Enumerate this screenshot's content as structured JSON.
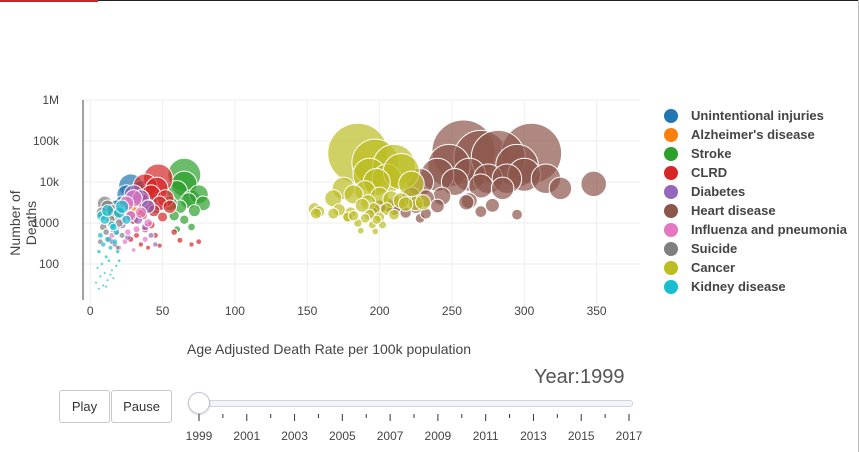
{
  "chart_data": {
    "type": "scatter",
    "title": "",
    "xlabel": "Age Adjusted Death Rate per 100k population",
    "ylabel": "Number of Deaths",
    "xlim": [
      -5,
      380
    ],
    "ylim_log10": [
      1,
      6
    ],
    "y_scale": "log",
    "x_ticks": [
      "0",
      "50",
      "100",
      "150",
      "200",
      "250",
      "300",
      "350"
    ],
    "x_tick_values": [
      0,
      50,
      100,
      150,
      200,
      250,
      300,
      350
    ],
    "y_ticks": [
      "100",
      "1000",
      "10k",
      "100k",
      "1M"
    ],
    "y_tick_values": [
      100,
      1000,
      10000,
      100000,
      1000000
    ],
    "grid": true,
    "legend_placement": "right",
    "series": [
      {
        "name": "Unintentional injuries",
        "color": "#1f77b4",
        "points": [
          [
            28,
            8000
          ],
          [
            25,
            5000
          ],
          [
            22,
            3000
          ],
          [
            35,
            6000
          ],
          [
            18,
            2500
          ],
          [
            30,
            4000
          ],
          [
            40,
            3500
          ],
          [
            15,
            1800
          ],
          [
            45,
            2500
          ]
        ]
      },
      {
        "name": "Alzheimer's disease",
        "color": "#ff7f0e",
        "points": [
          [
            20,
            2000
          ],
          [
            25,
            3000
          ],
          [
            30,
            1500
          ],
          [
            35,
            2500
          ],
          [
            15,
            900
          ],
          [
            28,
            2200
          ]
        ]
      },
      {
        "name": "Stroke",
        "color": "#2ca02c",
        "points": [
          [
            65,
            15000
          ],
          [
            65,
            9000
          ],
          [
            60,
            6000
          ],
          [
            70,
            4000
          ],
          [
            75,
            5000
          ],
          [
            68,
            3500
          ],
          [
            62,
            2500
          ],
          [
            78,
            3000
          ],
          [
            55,
            3000
          ],
          [
            72,
            2000
          ],
          [
            58,
            1500
          ],
          [
            65,
            1200
          ],
          [
            70,
            800
          ],
          [
            60,
            700
          ]
        ]
      },
      {
        "name": "CLRD",
        "color": "#d62728",
        "points": [
          [
            47,
            12000
          ],
          [
            38,
            8000
          ],
          [
            46,
            7000
          ],
          [
            42,
            5000
          ],
          [
            52,
            4000
          ],
          [
            35,
            3500
          ],
          [
            48,
            3000
          ],
          [
            40,
            2600
          ],
          [
            55,
            2500
          ],
          [
            44,
            2000
          ],
          [
            36,
            1600
          ],
          [
            50,
            1400
          ],
          [
            30,
            1200
          ],
          [
            42,
            900
          ],
          [
            38,
            700
          ],
          [
            58,
            600
          ],
          [
            45,
            500
          ],
          [
            32,
            500
          ],
          [
            28,
            400
          ],
          [
            35,
            300
          ],
          [
            40,
            250
          ],
          [
            48,
            280
          ],
          [
            62,
            380
          ],
          [
            70,
            300
          ],
          [
            75,
            350
          ]
        ]
      },
      {
        "name": "Diabetes",
        "color": "#9467bd",
        "points": [
          [
            30,
            5000
          ],
          [
            35,
            4000
          ],
          [
            25,
            3000
          ],
          [
            40,
            2500
          ],
          [
            20,
            2000
          ],
          [
            28,
            1500
          ],
          [
            33,
            1200
          ],
          [
            22,
            900
          ],
          [
            38,
            800
          ],
          [
            18,
            600
          ],
          [
            42,
            500
          ],
          [
            26,
            450
          ],
          [
            15,
            350
          ],
          [
            45,
            300
          ]
        ]
      },
      {
        "name": "Heart disease",
        "color": "#8c564b",
        "points": [
          [
            258,
            55000
          ],
          [
            270,
            40000
          ],
          [
            305,
            50000
          ],
          [
            282,
            40000
          ],
          [
            295,
            25000
          ],
          [
            248,
            25000
          ],
          [
            262,
            15000
          ],
          [
            275,
            12000
          ],
          [
            240,
            15000
          ],
          [
            300,
            15000
          ],
          [
            288,
            12000
          ],
          [
            315,
            12000
          ],
          [
            325,
            7000
          ],
          [
            348,
            9000
          ],
          [
            228,
            10000
          ],
          [
            252,
            10000
          ],
          [
            270,
            8000
          ],
          [
            285,
            7000
          ],
          [
            243,
            4500
          ],
          [
            262,
            3500
          ],
          [
            232,
            4000
          ],
          [
            222,
            4500
          ],
          [
            278,
            2700
          ],
          [
            260,
            3200
          ],
          [
            213,
            3000
          ],
          [
            240,
            2600
          ],
          [
            295,
            1600
          ],
          [
            270,
            1900
          ],
          [
            225,
            2500
          ],
          [
            210,
            2200
          ],
          [
            205,
            2800
          ],
          [
            218,
            1800
          ],
          [
            228,
            1300
          ],
          [
            200,
            2500
          ],
          [
            232,
            1700
          ],
          [
            195,
            1800
          ]
        ]
      },
      {
        "name": "Influenza and pneumonia",
        "color": "#e377c2",
        "points": [
          [
            30,
            4000
          ],
          [
            25,
            3000
          ],
          [
            20,
            2000
          ],
          [
            35,
            1800
          ],
          [
            28,
            1500
          ],
          [
            22,
            1200
          ],
          [
            40,
            1000
          ],
          [
            18,
            800
          ],
          [
            32,
            700
          ],
          [
            26,
            600
          ],
          [
            15,
            500
          ],
          [
            38,
            400
          ],
          [
            24,
            350
          ],
          [
            20,
            250
          ],
          [
            30,
            220
          ]
        ]
      },
      {
        "name": "Suicide",
        "color": "#7f7f7f",
        "points": [
          [
            10,
            3000
          ],
          [
            12,
            2500
          ],
          [
            15,
            2000
          ],
          [
            8,
            1800
          ],
          [
            18,
            1500
          ],
          [
            14,
            1200
          ],
          [
            20,
            1000
          ],
          [
            9,
            800
          ],
          [
            16,
            700
          ],
          [
            11,
            600
          ],
          [
            22,
            500
          ],
          [
            13,
            400
          ],
          [
            7,
            350
          ],
          [
            17,
            300
          ],
          [
            19,
            250
          ]
        ]
      },
      {
        "name": "Cancer",
        "color": "#bcbd22",
        "points": [
          [
            185,
            50000
          ],
          [
            197,
            30000
          ],
          [
            210,
            25000
          ],
          [
            193,
            15000
          ],
          [
            205,
            12000
          ],
          [
            215,
            18000
          ],
          [
            198,
            10000
          ],
          [
            222,
            9000
          ],
          [
            175,
            7000
          ],
          [
            190,
            6000
          ],
          [
            182,
            5000
          ],
          [
            200,
            4500
          ],
          [
            208,
            3800
          ],
          [
            168,
            4000
          ],
          [
            215,
            3500
          ],
          [
            225,
            3000
          ],
          [
            192,
            3200
          ],
          [
            218,
            2900
          ],
          [
            230,
            3200
          ],
          [
            196,
            2200
          ],
          [
            155,
            2200
          ],
          [
            172,
            2100
          ],
          [
            188,
            2700
          ],
          [
            205,
            2200
          ],
          [
            180,
            1800
          ],
          [
            210,
            1600
          ],
          [
            193,
            1600
          ],
          [
            178,
            1400
          ],
          [
            200,
            1400
          ],
          [
            190,
            1300
          ],
          [
            185,
            1000
          ],
          [
            195,
            900
          ],
          [
            202,
            900
          ],
          [
            198,
            1200
          ],
          [
            187,
            650
          ],
          [
            197,
            620
          ],
          [
            178,
            1400
          ],
          [
            182,
            1500
          ],
          [
            168,
            1700
          ],
          [
            158,
            1900
          ],
          [
            156,
            1700
          ]
        ]
      },
      {
        "name": "Kidney disease",
        "color": "#17becf",
        "points": [
          [
            8,
            1500
          ],
          [
            10,
            1200
          ],
          [
            12,
            2000
          ],
          [
            15,
            900
          ],
          [
            20,
            1800
          ],
          [
            25,
            1200
          ],
          [
            18,
            600
          ],
          [
            7,
            500
          ],
          [
            12,
            400
          ],
          [
            22,
            2500
          ],
          [
            16,
            800
          ],
          [
            9,
            300
          ],
          [
            14,
            250
          ],
          [
            6,
            200
          ],
          [
            11,
            150
          ],
          [
            17,
            350
          ],
          [
            19,
            200
          ],
          [
            13,
            120
          ],
          [
            8,
            100
          ],
          [
            5,
            80
          ],
          [
            10,
            60
          ],
          [
            7,
            50
          ],
          [
            12,
            40
          ],
          [
            15,
            70
          ],
          [
            4,
            35
          ],
          [
            9,
            30
          ],
          [
            16,
            45
          ],
          [
            18,
            90
          ],
          [
            20,
            120
          ],
          [
            14,
            55
          ],
          [
            6,
            25
          ],
          [
            11,
            28
          ]
        ]
      }
    ]
  },
  "year_label": {
    "label": "Year:",
    "value": "1999"
  },
  "controls": {
    "play_label": "Play",
    "pause_label": "Pause"
  },
  "slider": {
    "value": 1999,
    "min": 1999,
    "max": 2017,
    "tick_labels": [
      "1999",
      "2001",
      "2003",
      "2005",
      "2007",
      "2009",
      "2011",
      "2013",
      "2015",
      "2017"
    ]
  }
}
